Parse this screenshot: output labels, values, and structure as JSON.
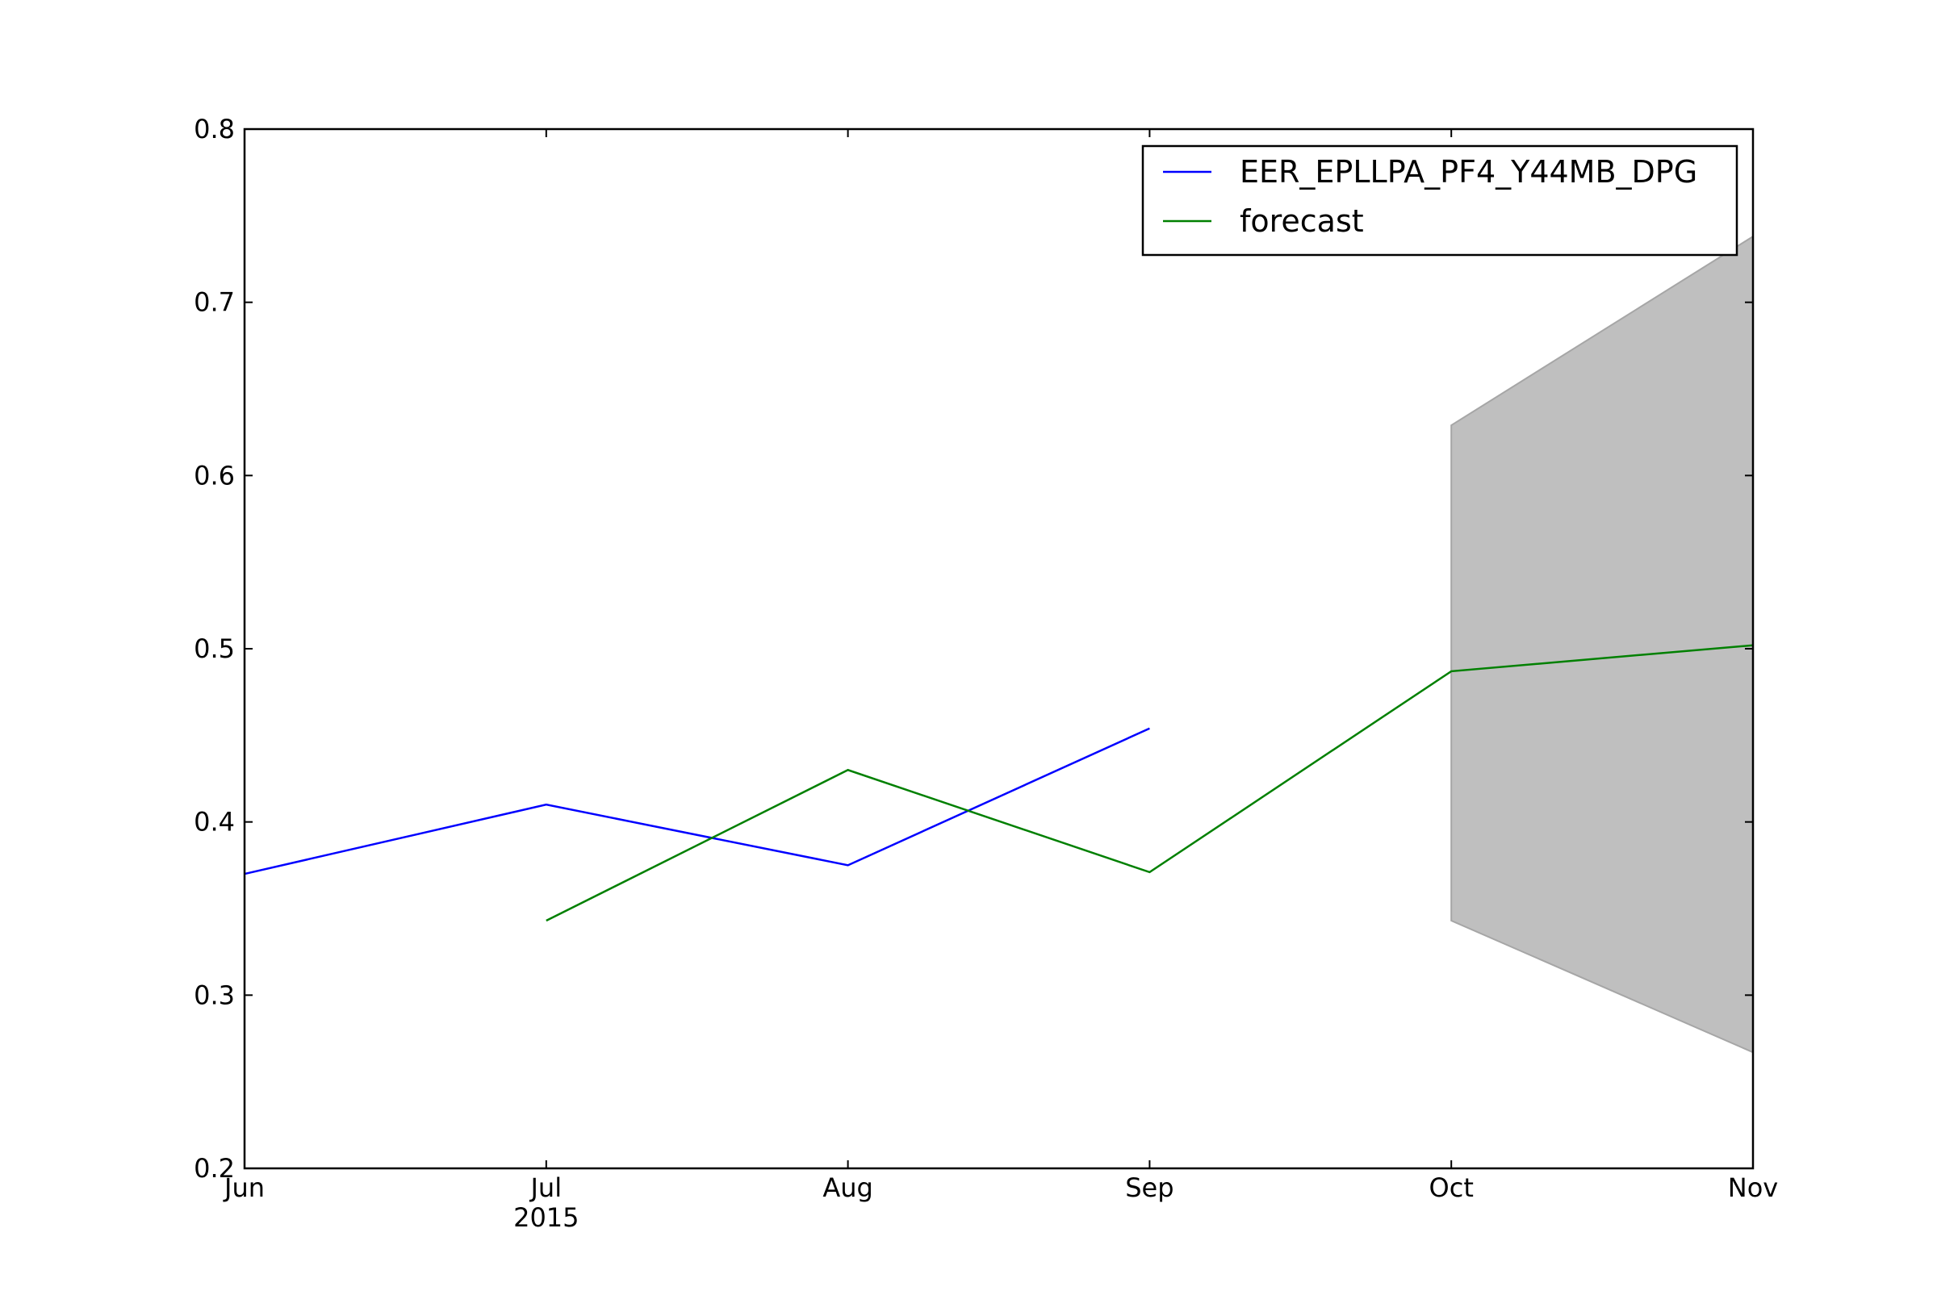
{
  "chart_data": {
    "type": "line",
    "x": [
      "2015-06",
      "2015-07",
      "2015-08",
      "2015-09",
      "2015-10",
      "2015-11"
    ],
    "x_tick_labels": [
      "Jun",
      "Jul",
      "Aug",
      "Sep",
      "Oct",
      "Nov"
    ],
    "x_year_label": "2015",
    "ylim": [
      0.2,
      0.8
    ],
    "y_ticks": [
      "0.2",
      "0.3",
      "0.4",
      "0.5",
      "0.6",
      "0.7",
      "0.8"
    ],
    "grid": false,
    "legend_position": "top-right",
    "series": [
      {
        "name": "EER_EPLLPA_PF4_Y44MB_DPG",
        "color": "#0000ff",
        "points": [
          {
            "x": "2015-06",
            "y": 0.37
          },
          {
            "x": "2015-07",
            "y": 0.41
          },
          {
            "x": "2015-08",
            "y": 0.375
          },
          {
            "x": "2015-09",
            "y": 0.454
          }
        ]
      },
      {
        "name": "forecast",
        "color": "#008000",
        "points": [
          {
            "x": "2015-07",
            "y": 0.343
          },
          {
            "x": "2015-08",
            "y": 0.43
          },
          {
            "x": "2015-09",
            "y": 0.371
          },
          {
            "x": "2015-10",
            "y": 0.487
          },
          {
            "x": "2015-11",
            "y": 0.502
          }
        ]
      }
    ],
    "confidence_band": {
      "color": "#bfbfbf",
      "lower": [
        {
          "x": "2015-10",
          "y": 0.343
        },
        {
          "x": "2015-11",
          "y": 0.267
        }
      ],
      "upper": [
        {
          "x": "2015-10",
          "y": 0.629
        },
        {
          "x": "2015-11",
          "y": 0.738
        }
      ]
    }
  }
}
